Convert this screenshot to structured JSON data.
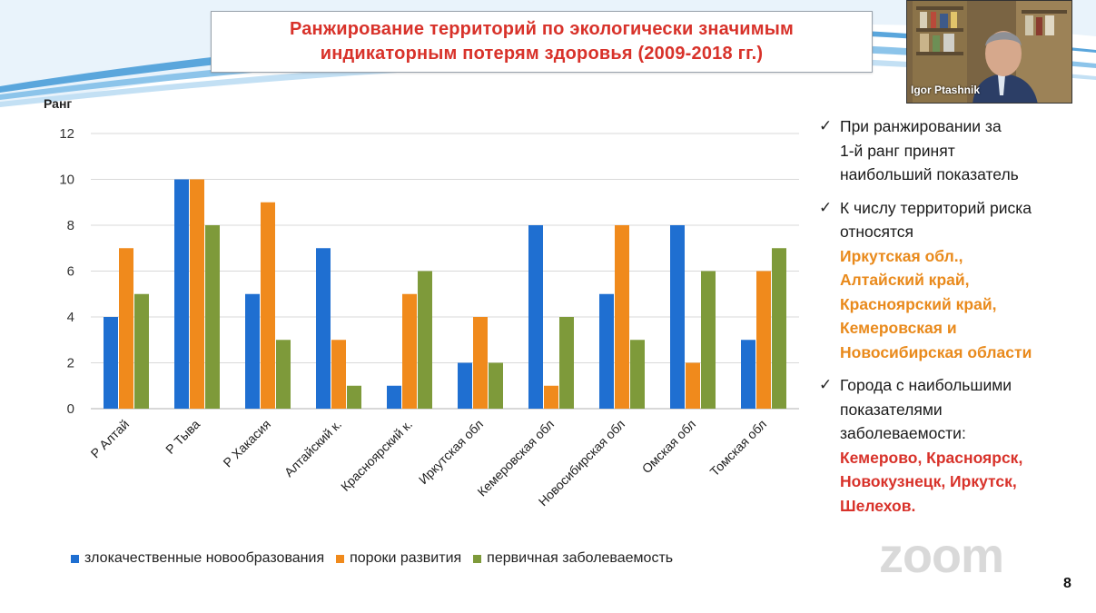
{
  "slide": {
    "title_line1": "Ранжирование территорий по экологически значимым",
    "title_line2": "индикаторным потерям здоровья (2009-2018 гг.)",
    "page_number": "8",
    "watermark": "zoom"
  },
  "video": {
    "participant_name": "Igor Ptashnik"
  },
  "notes": {
    "items": [
      {
        "lines": [
          "При ранжировании за",
          "1-й ранг принят",
          "наибольший показатель"
        ],
        "highlight": []
      },
      {
        "lines": [
          "К числу территорий риска",
          "относятся"
        ],
        "highlight": [
          "Иркутская обл.,",
          "Алтайский край,",
          "Красноярский край,",
          "Кемеровская и",
          "Новосибирская области"
        ]
      },
      {
        "lines": [
          "Города с наибольшими",
          "показателями",
          "заболеваемости:"
        ],
        "highlight": [
          "Кемерово, Красноярск,",
          "Новокузнецк, Иркутск,",
          "Шелехов."
        ]
      }
    ]
  },
  "colors": {
    "title_red": "#d8322a",
    "highlight_orange": "#e98a1c",
    "series_blue": "#1f6fd1",
    "series_orange": "#f08a1c",
    "series_green": "#7e9a3a"
  },
  "chart_data": {
    "type": "bar",
    "ylabel": "Ранг",
    "ylim": [
      0,
      12
    ],
    "yticks": [
      0,
      2,
      4,
      6,
      8,
      10,
      12
    ],
    "grid": true,
    "legend_position": "bottom",
    "categories": [
      "Р Алтай",
      "Р Тыва",
      "Р Хакасия",
      "Алтайский к.",
      "Красноярский к.",
      "Иркутская обл",
      "Кемеровская обл",
      "Новосибирская обл",
      "Омская обл",
      "Томская обл"
    ],
    "series": [
      {
        "name": "злокачественные новообразования",
        "color": "#1f6fd1",
        "values": [
          4,
          10,
          5,
          7,
          1,
          2,
          8,
          5,
          8,
          3
        ]
      },
      {
        "name": "пороки развития",
        "color": "#f08a1c",
        "values": [
          7,
          10,
          9,
          3,
          5,
          4,
          1,
          8,
          2,
          6
        ]
      },
      {
        "name": "первичная заболеваемость",
        "color": "#7e9a3a",
        "values": [
          5,
          8,
          3,
          1,
          6,
          2,
          4,
          3,
          6,
          7
        ]
      }
    ]
  }
}
